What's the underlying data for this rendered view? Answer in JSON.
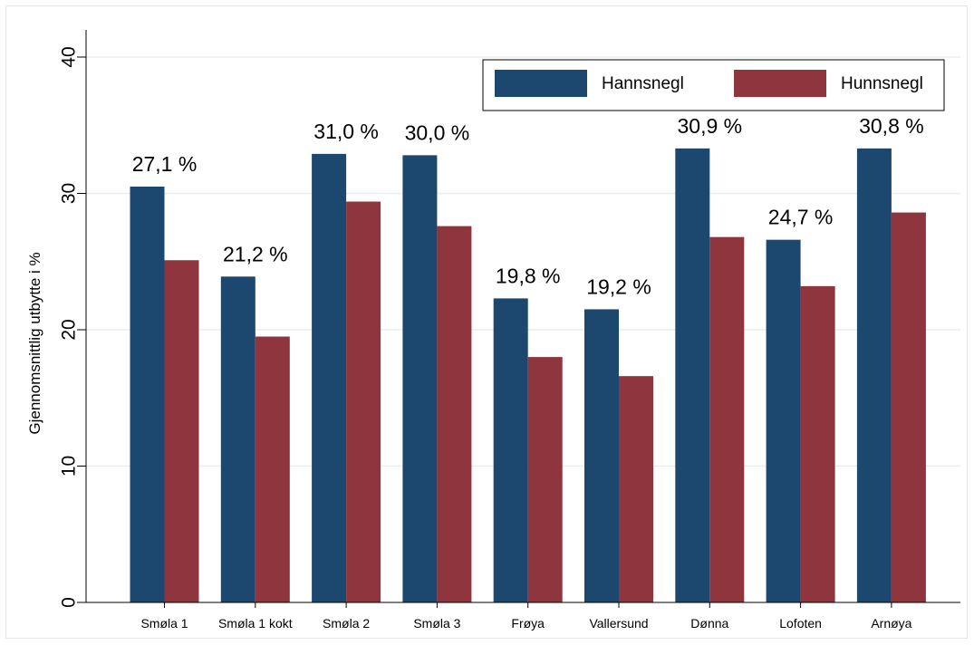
{
  "colors": {
    "background": "#ffffff",
    "gridline": "#e8eef2",
    "axis": "#000000"
  },
  "chart_data": {
    "type": "bar",
    "ylabel": "Gjennomsnittlig utbytte i %",
    "xlabel": "",
    "ylim": [
      0,
      40
    ],
    "yticks": [
      0,
      10,
      20,
      30,
      40
    ],
    "ytick_labels": [
      "0",
      "10",
      "20",
      "30",
      "40"
    ],
    "grid": true,
    "legend_position": "top-right",
    "categories": [
      "Smøla 1",
      "Smøla 1 kokt",
      "Smøla 2",
      "Smøla 3",
      "Frøya",
      "Vallersund",
      "Dønna",
      "Lofoten",
      "Arnøya"
    ],
    "series": [
      {
        "name": "Hannsnegl",
        "color": "#1c476e",
        "values": [
          30.5,
          23.9,
          32.9,
          32.8,
          22.3,
          21.5,
          33.3,
          26.6,
          33.3
        ]
      },
      {
        "name": "Hunnsnegl",
        "color": "#8f353d",
        "values": [
          25.1,
          19.5,
          29.4,
          27.6,
          18.0,
          16.6,
          26.8,
          23.2,
          28.6
        ]
      }
    ],
    "annotations": [
      "27,1 %",
      "21,2 %",
      "31,0 %",
      "30,0 %",
      "19,8 %",
      "19,2 %",
      "30,9 %",
      "24,7 %",
      "30,8 %"
    ]
  }
}
